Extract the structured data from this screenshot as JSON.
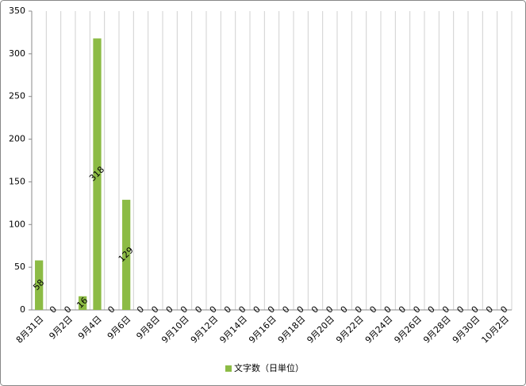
{
  "chart_data": {
    "type": "bar",
    "categories": [
      "8月31日",
      null,
      "9月2日",
      null,
      "9月4日",
      null,
      "9月6日",
      null,
      "9月8日",
      null,
      "9月10日",
      null,
      "9月12日",
      null,
      "9月14日",
      null,
      "9月16日",
      null,
      "9月18日",
      null,
      "9月20日",
      null,
      "9月22日",
      null,
      "9月24日",
      null,
      "9月26日",
      null,
      "9月28日",
      null,
      "9月30日",
      null,
      "10月2日"
    ],
    "series": [
      {
        "name": "文字数（日単位）",
        "color": "#8cbb45",
        "values": [
          58,
          0,
          0,
          16,
          318,
          0,
          129,
          0,
          0,
          0,
          0,
          0,
          0,
          0,
          0,
          0,
          0,
          0,
          0,
          0,
          0,
          0,
          0,
          0,
          0,
          0,
          0,
          0,
          0,
          0,
          0,
          0,
          0
        ]
      }
    ],
    "ylim": [
      0,
      350
    ],
    "yticks": [
      0,
      50,
      100,
      150,
      200,
      250,
      300,
      350
    ],
    "grid": true,
    "legend": "bottom"
  }
}
